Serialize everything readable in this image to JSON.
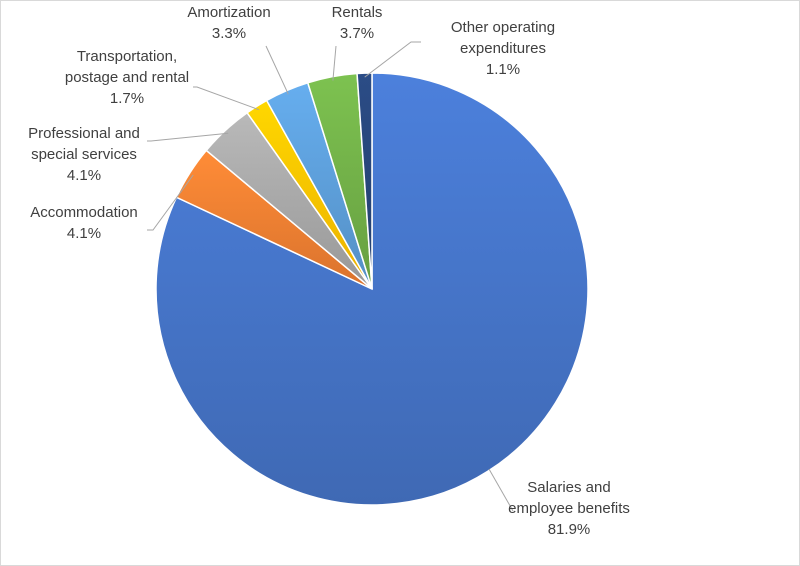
{
  "chart_data": {
    "type": "pie",
    "title": "",
    "unit": "%",
    "slices": [
      {
        "label_lines": [
          "Salaries and",
          "employee benefits"
        ],
        "value": 81.9,
        "value_text": "81.9%",
        "color": "#4472C4"
      },
      {
        "label_lines": [
          "Accommodation"
        ],
        "value": 4.1,
        "value_text": "4.1%",
        "color": "#ED7D31"
      },
      {
        "label_lines": [
          "Professional and",
          "special services"
        ],
        "value": 4.1,
        "value_text": "4.1%",
        "color": "#A5A5A5"
      },
      {
        "label_lines": [
          "Transportation,",
          "postage and rental"
        ],
        "value": 1.7,
        "value_text": "1.7%",
        "color": "#FFC000"
      },
      {
        "label_lines": [
          "Amortization"
        ],
        "value": 3.3,
        "value_text": "3.3%",
        "color": "#5B9BD5"
      },
      {
        "label_lines": [
          "Rentals"
        ],
        "value": 3.7,
        "value_text": "3.7%",
        "color": "#70AD47"
      },
      {
        "label_lines": [
          "Other operating",
          "expenditures"
        ],
        "value": 1.1,
        "value_text": "1.1%",
        "color": "#264478"
      }
    ],
    "start": "top",
    "direction": "counterclockwise",
    "legend": "none",
    "data_labels": "outside-with-leader-lines"
  }
}
